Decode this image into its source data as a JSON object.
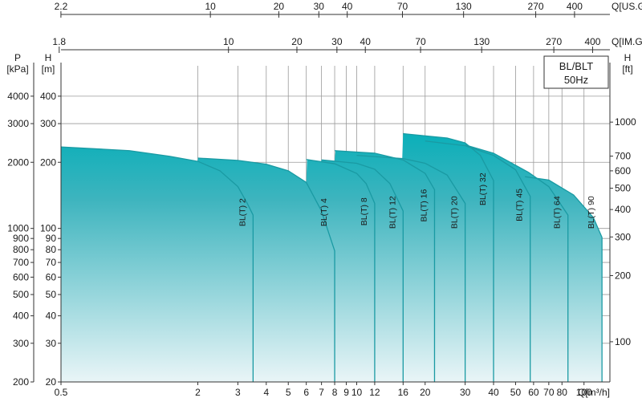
{
  "chart_data": {
    "type": "area",
    "title": [
      "BL/BLT",
      "50Hz"
    ],
    "axes": {
      "x_bottom": {
        "label": "Q[m³/h]",
        "scale": "log",
        "range": [
          0.5,
          130
        ],
        "ticks": [
          "0.5",
          "2",
          "3",
          "4",
          "5",
          "6",
          "7",
          "8",
          "9",
          "10",
          "12",
          "16",
          "20",
          "30",
          "40",
          "50",
          "60",
          "70",
          "80",
          "100"
        ]
      },
      "x_top_us": {
        "label": "Q[US.GPM]",
        "ticks": [
          "2.2",
          "10",
          "20",
          "30",
          "40",
          "70",
          "130",
          "270",
          "400"
        ]
      },
      "x_top_im": {
        "label": "Q[IM.GPM]",
        "ticks": [
          "1.8",
          "10",
          "20",
          "30",
          "40",
          "70",
          "130",
          "270",
          "400"
        ]
      },
      "y_left_m": {
        "label_top": "H",
        "label_bottom": "[m]",
        "scale": "log",
        "range": [
          20,
          550
        ],
        "ticks": [
          "20",
          "30",
          "40",
          "50",
          "60",
          "70",
          "80",
          "90",
          "100",
          "200",
          "300",
          "400"
        ]
      },
      "y_left_kpa": {
        "label_top": "P",
        "label_bottom": "[kPa]",
        "ticks": [
          "200",
          "300",
          "400",
          "500",
          "600",
          "700",
          "800",
          "900",
          "1000",
          "2000",
          "3000",
          "4000"
        ]
      },
      "y_right_ft": {
        "label_top": "H",
        "label_bottom": "[ft]",
        "ticks": [
          "100",
          "200",
          "300",
          "400",
          "500",
          "600",
          "700",
          "1000"
        ]
      }
    },
    "grid": true,
    "series": [
      {
        "name": "BL(T) 2",
        "q_max": 3.5,
        "curve": [
          [
            0.5,
            235
          ],
          [
            1,
            226
          ],
          [
            1.5,
            213
          ],
          [
            2,
            202
          ],
          [
            2.5,
            183
          ],
          [
            3,
            155
          ],
          [
            3.3,
            130
          ],
          [
            3.5,
            115
          ]
        ]
      },
      {
        "name": "BL(T) 4",
        "q_max": 8,
        "curve": [
          [
            2,
            209
          ],
          [
            3,
            204
          ],
          [
            4,
            196
          ],
          [
            5,
            183
          ],
          [
            6,
            162
          ],
          [
            7,
            120
          ],
          [
            8,
            79
          ]
        ]
      },
      {
        "name": "BL(T) 8",
        "q_max": 12,
        "curve": [
          [
            6,
            206
          ],
          [
            8,
            197
          ],
          [
            10,
            178
          ],
          [
            11,
            160
          ],
          [
            12,
            130
          ]
        ]
      },
      {
        "name": "BL(T) 12",
        "q_max": 16,
        "curve": [
          [
            7,
            205
          ],
          [
            10,
            198
          ],
          [
            12,
            186
          ],
          [
            14,
            160
          ],
          [
            16,
            120
          ]
        ]
      },
      {
        "name": "BL(T) 16",
        "q_max": 22,
        "curve": [
          [
            8,
            226
          ],
          [
            12,
            220
          ],
          [
            16,
            205
          ],
          [
            20,
            178
          ],
          [
            22,
            150
          ]
        ]
      },
      {
        "name": "BL(T) 20",
        "q_max": 30,
        "curve": [
          [
            10,
            215
          ],
          [
            16,
            208
          ],
          [
            20,
            198
          ],
          [
            25,
            175
          ],
          [
            30,
            130
          ]
        ]
      },
      {
        "name": "BL(T) 32",
        "q_max": 40,
        "curve": [
          [
            16,
            270
          ],
          [
            25,
            258
          ],
          [
            30,
            245
          ],
          [
            35,
            215
          ],
          [
            40,
            165
          ]
        ]
      },
      {
        "name": "BL(T) 45",
        "q_max": 58,
        "curve": [
          [
            20,
            250
          ],
          [
            30,
            238
          ],
          [
            40,
            215
          ],
          [
            50,
            185
          ],
          [
            58,
            140
          ]
        ]
      },
      {
        "name": "BL(T) 64",
        "q_max": 85,
        "curve": [
          [
            30,
            240
          ],
          [
            40,
            220
          ],
          [
            57,
            180
          ],
          [
            70,
            155
          ],
          [
            85,
            115
          ]
        ]
      },
      {
        "name": "BL(T) 90",
        "q_max": 120,
        "curve": [
          [
            55,
            172
          ],
          [
            70,
            166
          ],
          [
            90,
            142
          ],
          [
            110,
            112
          ],
          [
            120,
            91
          ]
        ]
      }
    ]
  }
}
